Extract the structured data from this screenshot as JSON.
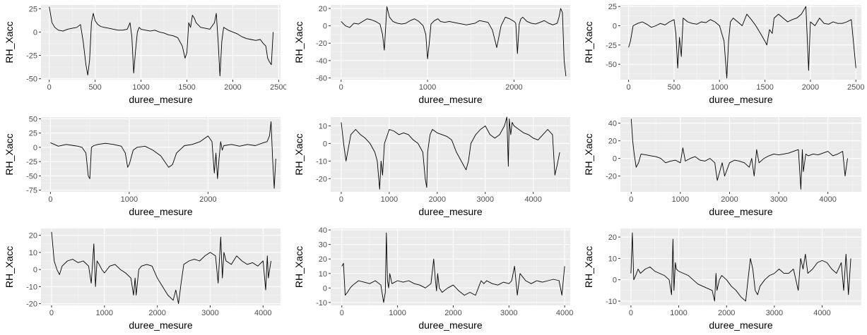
{
  "colors": {
    "panel_bg": "#EBEBEB",
    "grid_major": "#FFFFFF",
    "grid_minor": "#F5F5F5",
    "line": "#000000",
    "tick_text": "#4D4D4D",
    "tick_mark": "#333333"
  },
  "chart_data": [
    {
      "type": "line",
      "xlabel": "duree_mesure",
      "ylabel": "RH_Xacc",
      "grid": true,
      "xlim": [
        -90,
        2520
      ],
      "ylim": [
        -51,
        29
      ],
      "xticks": [
        0,
        500,
        1000,
        1500,
        2000,
        2500
      ],
      "yticks": [
        -50,
        -25,
        0,
        25
      ],
      "x": [
        0,
        30,
        60,
        100,
        150,
        200,
        250,
        300,
        340,
        370,
        400,
        420,
        440,
        460,
        480,
        500,
        530,
        560,
        600,
        650,
        700,
        750,
        800,
        850,
        880,
        900,
        920,
        940,
        960,
        980,
        1000,
        1050,
        1100,
        1150,
        1200,
        1250,
        1300,
        1350,
        1400,
        1450,
        1480,
        1500,
        1520,
        1540,
        1560,
        1580,
        1600,
        1650,
        1700,
        1750,
        1800,
        1820,
        1840,
        1860,
        1880,
        1900,
        1950,
        2000,
        2050,
        2100,
        2150,
        2200,
        2250,
        2300,
        2330,
        2360,
        2380,
        2400,
        2420,
        2440
      ],
      "y": [
        27,
        10,
        5,
        2,
        1,
        3,
        4,
        5,
        8,
        -10,
        -35,
        -46,
        -30,
        10,
        20,
        12,
        8,
        6,
        5,
        4,
        3,
        2,
        2,
        3,
        10,
        -5,
        -44,
        -20,
        0,
        5,
        3,
        2,
        1,
        2,
        0,
        -1,
        -3,
        -4,
        -6,
        -15,
        -28,
        -22,
        10,
        5,
        18,
        15,
        10,
        5,
        4,
        3,
        10,
        20,
        -10,
        -47,
        -10,
        5,
        2,
        0,
        -2,
        -5,
        -7,
        -8,
        -9,
        -8,
        -12,
        -15,
        -28,
        -32,
        -35,
        0
      ]
    },
    {
      "type": "line",
      "xlabel": "duree_mesure",
      "ylabel": "RH_Xacc",
      "grid": true,
      "xlim": [
        -120,
        2650
      ],
      "ylim": [
        -62,
        24
      ],
      "xticks": [
        0,
        1000,
        2000
      ],
      "yticks": [
        -60,
        -40,
        -20,
        0,
        20
      ],
      "x": [
        0,
        50,
        100,
        150,
        200,
        250,
        300,
        350,
        400,
        450,
        480,
        500,
        530,
        560,
        600,
        650,
        700,
        750,
        800,
        850,
        900,
        950,
        980,
        1000,
        1020,
        1040,
        1080,
        1120,
        1150,
        1200,
        1250,
        1300,
        1350,
        1400,
        1450,
        1500,
        1550,
        1600,
        1650,
        1700,
        1750,
        1800,
        1850,
        1900,
        1950,
        2000,
        2020,
        2040,
        2060,
        2080,
        2100,
        2150,
        2200,
        2250,
        2300,
        2350,
        2400,
        2450,
        2500,
        2520,
        2540,
        2560,
        2580,
        2600
      ],
      "y": [
        5,
        0,
        -2,
        3,
        2,
        5,
        8,
        7,
        5,
        2,
        -10,
        -28,
        22,
        10,
        5,
        3,
        2,
        3,
        6,
        8,
        5,
        0,
        -10,
        -38,
        -20,
        2,
        6,
        8,
        5,
        4,
        5,
        4,
        3,
        2,
        1,
        2,
        3,
        6,
        5,
        4,
        -5,
        -25,
        0,
        10,
        8,
        5,
        3,
        -32,
        2,
        8,
        10,
        5,
        3,
        2,
        4,
        6,
        3,
        1,
        3,
        10,
        20,
        15,
        -40,
        -58
      ]
    },
    {
      "type": "line",
      "xlabel": "duree_mesure",
      "ylabel": "RH_Xacc",
      "grid": true,
      "xlim": [
        -90,
        2560
      ],
      "ylim": [
        -70,
        27
      ],
      "xticks": [
        0,
        500,
        1000,
        1500,
        2000,
        2500
      ],
      "yticks": [
        -50,
        -25,
        0,
        25
      ],
      "x": [
        0,
        20,
        50,
        100,
        150,
        200,
        250,
        300,
        350,
        400,
        450,
        500,
        520,
        540,
        560,
        580,
        600,
        650,
        700,
        750,
        800,
        850,
        900,
        950,
        1000,
        1050,
        1080,
        1100,
        1120,
        1150,
        1200,
        1250,
        1300,
        1350,
        1400,
        1450,
        1500,
        1520,
        1550,
        1580,
        1600,
        1650,
        1700,
        1750,
        1800,
        1850,
        1900,
        1950,
        1980,
        2000,
        2050,
        2100,
        2150,
        2200,
        2250,
        2300,
        2350,
        2400,
        2450,
        2500
      ],
      "y": [
        -28,
        -20,
        0,
        3,
        5,
        2,
        -2,
        0,
        3,
        1,
        5,
        8,
        -10,
        -55,
        -15,
        -40,
        10,
        5,
        3,
        2,
        5,
        4,
        8,
        5,
        0,
        -20,
        -68,
        -20,
        5,
        10,
        5,
        0,
        15,
        8,
        0,
        -10,
        -20,
        -25,
        -5,
        -10,
        10,
        15,
        10,
        5,
        8,
        10,
        15,
        25,
        -58,
        5,
        0,
        10,
        3,
        2,
        5,
        3,
        3,
        5,
        8,
        -55
      ]
    },
    {
      "type": "line",
      "xlabel": "duree_mesure",
      "ylabel": "RH_Xacc",
      "grid": true,
      "xlim": [
        -120,
        2920
      ],
      "ylim": [
        -78,
        53
      ],
      "xticks": [
        0,
        1000,
        2000
      ],
      "yticks": [
        -75,
        -50,
        -25,
        0,
        25,
        50
      ],
      "x": [
        0,
        50,
        100,
        200,
        300,
        350,
        400,
        450,
        480,
        500,
        520,
        550,
        600,
        700,
        800,
        900,
        950,
        980,
        1000,
        1050,
        1100,
        1200,
        1300,
        1400,
        1500,
        1550,
        1600,
        1700,
        1800,
        1900,
        2000,
        2050,
        2080,
        2100,
        2120,
        2140,
        2160,
        2180,
        2200,
        2300,
        2400,
        2500,
        2600,
        2700,
        2750,
        2780,
        2800,
        2820,
        2840,
        2860
      ],
      "y": [
        8,
        5,
        2,
        5,
        3,
        2,
        0,
        -10,
        -50,
        -55,
        0,
        3,
        5,
        7,
        5,
        2,
        -10,
        -35,
        -30,
        -5,
        0,
        2,
        -5,
        -15,
        -35,
        -30,
        -10,
        3,
        5,
        10,
        20,
        10,
        -45,
        -10,
        -55,
        -20,
        10,
        -5,
        3,
        5,
        2,
        5,
        3,
        8,
        10,
        20,
        45,
        -20,
        -72,
        -20
      ]
    },
    {
      "type": "line",
      "xlabel": "duree_mesure",
      "ylabel": "RH_Xacc",
      "grid": true,
      "xlim": [
        -220,
        4770
      ],
      "ylim": [
        -27.5,
        15
      ],
      "xticks": [
        0,
        1000,
        2000,
        3000,
        4000
      ],
      "yticks": [
        -20,
        -10,
        0,
        10
      ],
      "x": [
        0,
        50,
        100,
        200,
        300,
        400,
        500,
        600,
        700,
        750,
        800,
        830,
        860,
        900,
        1000,
        1100,
        1200,
        1300,
        1400,
        1500,
        1600,
        1700,
        1750,
        1780,
        1800,
        1850,
        1900,
        2000,
        2100,
        2200,
        2300,
        2400,
        2500,
        2600,
        2650,
        2700,
        2800,
        2900,
        3000,
        3100,
        3200,
        3300,
        3400,
        3450,
        3480,
        3500,
        3530,
        3560,
        3600,
        3700,
        3800,
        3900,
        4000,
        4100,
        4200,
        4300,
        4400,
        4450,
        4500,
        4550
      ],
      "y": [
        12,
        0,
        -10,
        5,
        8,
        5,
        3,
        0,
        -5,
        -10,
        -26,
        -10,
        -18,
        0,
        8,
        7,
        5,
        6,
        5,
        2,
        0,
        -5,
        -20,
        -25,
        -5,
        5,
        8,
        6,
        5,
        4,
        2,
        -5,
        -10,
        -15,
        -10,
        0,
        5,
        8,
        10,
        5,
        3,
        5,
        10,
        15,
        -13,
        14,
        5,
        12,
        10,
        8,
        6,
        5,
        3,
        2,
        5,
        8,
        5,
        -18,
        -12,
        -5
      ]
    },
    {
      "type": "line",
      "xlabel": "duree_mesure",
      "ylabel": "RH_Xacc",
      "grid": true,
      "xlim": [
        -220,
        4680
      ],
      "ylim": [
        -38,
        47
      ],
      "xticks": [
        0,
        1000,
        2000,
        3000,
        4000
      ],
      "yticks": [
        -20,
        0,
        20,
        40
      ],
      "x": [
        0,
        30,
        60,
        100,
        150,
        200,
        300,
        400,
        500,
        600,
        700,
        800,
        900,
        1000,
        1050,
        1100,
        1200,
        1300,
        1400,
        1500,
        1600,
        1700,
        1750,
        1800,
        1850,
        1900,
        2000,
        2100,
        2200,
        2300,
        2400,
        2450,
        2500,
        2550,
        2600,
        2700,
        2800,
        2900,
        3000,
        3100,
        3200,
        3300,
        3400,
        3450,
        3480,
        3500,
        3550,
        3600,
        3700,
        3800,
        3900,
        4000,
        4100,
        4200,
        4300,
        4350,
        4400
      ],
      "y": [
        45,
        20,
        5,
        -10,
        -5,
        5,
        4,
        3,
        2,
        0,
        -5,
        -3,
        -2,
        -5,
        12,
        -3,
        0,
        2,
        -2,
        -3,
        0,
        -5,
        -25,
        -15,
        -5,
        -20,
        -5,
        -2,
        -3,
        -5,
        -10,
        0,
        -20,
        10,
        -5,
        0,
        3,
        5,
        4,
        5,
        6,
        8,
        10,
        -35,
        10,
        -15,
        5,
        3,
        5,
        4,
        6,
        8,
        3,
        5,
        8,
        -20,
        0
      ]
    },
    {
      "type": "line",
      "xlabel": "duree_mesure",
      "ylabel": "RH_Xacc",
      "grid": true,
      "xlim": [
        -200,
        4330
      ],
      "ylim": [
        -21,
        24
      ],
      "xticks": [
        0,
        1000,
        2000,
        3000,
        4000
      ],
      "yticks": [
        -20,
        -10,
        0,
        10,
        20
      ],
      "x": [
        0,
        50,
        100,
        150,
        200,
        300,
        400,
        500,
        600,
        700,
        750,
        800,
        830,
        860,
        900,
        950,
        1000,
        1100,
        1200,
        1300,
        1400,
        1500,
        1550,
        1580,
        1600,
        1650,
        1700,
        1800,
        1900,
        2000,
        2100,
        2200,
        2300,
        2350,
        2400,
        2450,
        2500,
        2600,
        2700,
        2800,
        2900,
        3000,
        3100,
        3150,
        3200,
        3230,
        3260,
        3300,
        3400,
        3500,
        3600,
        3700,
        3800,
        3900,
        4000,
        4050,
        4080,
        4100,
        4150
      ],
      "y": [
        22,
        5,
        0,
        -3,
        2,
        5,
        6,
        4,
        5,
        2,
        -8,
        15,
        -10,
        5,
        3,
        0,
        -2,
        2,
        3,
        0,
        -2,
        -5,
        -15,
        -5,
        -15,
        0,
        2,
        3,
        2,
        -5,
        -10,
        -15,
        -18,
        -12,
        -20,
        -8,
        3,
        5,
        6,
        5,
        8,
        10,
        8,
        -8,
        19,
        -5,
        10,
        5,
        3,
        8,
        5,
        3,
        4,
        2,
        5,
        -12,
        8,
        -5,
        5
      ]
    },
    {
      "type": "line",
      "xlabel": "duree_mesure",
      "ylabel": "RH_Xacc",
      "grid": true,
      "xlim": [
        -200,
        4100
      ],
      "ylim": [
        -12,
        41
      ],
      "xticks": [
        0,
        1000,
        2000,
        3000,
        4000
      ],
      "yticks": [
        -10,
        0,
        10,
        20,
        30,
        40
      ],
      "x": [
        0,
        30,
        60,
        100,
        150,
        200,
        300,
        400,
        500,
        600,
        700,
        750,
        780,
        800,
        820,
        840,
        860,
        900,
        1000,
        1100,
        1200,
        1300,
        1400,
        1500,
        1600,
        1650,
        1680,
        1700,
        1720,
        1750,
        1800,
        1900,
        2000,
        2100,
        2200,
        2300,
        2400,
        2450,
        2500,
        2550,
        2600,
        2700,
        2800,
        2900,
        3000,
        3050,
        3100,
        3150,
        3200,
        3300,
        3400,
        3500,
        3600,
        3700,
        3800,
        3900,
        3950,
        4000
      ],
      "y": [
        15,
        17,
        -5,
        -3,
        0,
        2,
        5,
        4,
        3,
        5,
        2,
        -10,
        -3,
        38,
        5,
        0,
        10,
        3,
        5,
        4,
        5,
        3,
        2,
        0,
        3,
        20,
        5,
        -2,
        10,
        0,
        -3,
        0,
        2,
        -2,
        -5,
        -3,
        -5,
        0,
        5,
        3,
        5,
        3,
        2,
        4,
        3,
        5,
        15,
        -5,
        10,
        5,
        3,
        5,
        4,
        5,
        6,
        5,
        -5,
        15
      ]
    },
    {
      "type": "line",
      "xlabel": "duree_mesure",
      "ylabel": "RH_Xacc",
      "grid": true,
      "xlim": [
        -220,
        4820
      ],
      "ylim": [
        -12,
        24
      ],
      "xticks": [
        0,
        1000,
        2000,
        3000,
        4000
      ],
      "yticks": [
        -10,
        0,
        10,
        20
      ],
      "x": [
        0,
        30,
        60,
        100,
        150,
        200,
        300,
        400,
        500,
        600,
        700,
        800,
        850,
        880,
        900,
        930,
        950,
        1000,
        1100,
        1200,
        1300,
        1400,
        1500,
        1600,
        1700,
        1750,
        1780,
        1800,
        1850,
        1900,
        2000,
        2100,
        2200,
        2300,
        2400,
        2450,
        2500,
        2550,
        2600,
        2650,
        2700,
        2800,
        2900,
        3000,
        3100,
        3200,
        3300,
        3400,
        3500,
        3550,
        3600,
        3650,
        3700,
        3800,
        3900,
        4000,
        4100,
        4200,
        4300,
        4400,
        4450,
        4500,
        4550,
        4600
      ],
      "y": [
        3,
        22,
        0,
        2,
        5,
        3,
        5,
        6,
        4,
        3,
        2,
        0,
        -7,
        19,
        -5,
        8,
        5,
        4,
        3,
        2,
        0,
        -2,
        -3,
        -4,
        -5,
        -10,
        3,
        -5,
        0,
        2,
        0,
        -3,
        -5,
        -8,
        -10,
        0,
        10,
        5,
        -5,
        -7,
        -3,
        0,
        2,
        3,
        5,
        3,
        3,
        5,
        -5,
        10,
        5,
        12,
        3,
        5,
        8,
        9,
        8,
        5,
        3,
        8,
        -5,
        12,
        -7,
        10
      ]
    }
  ]
}
